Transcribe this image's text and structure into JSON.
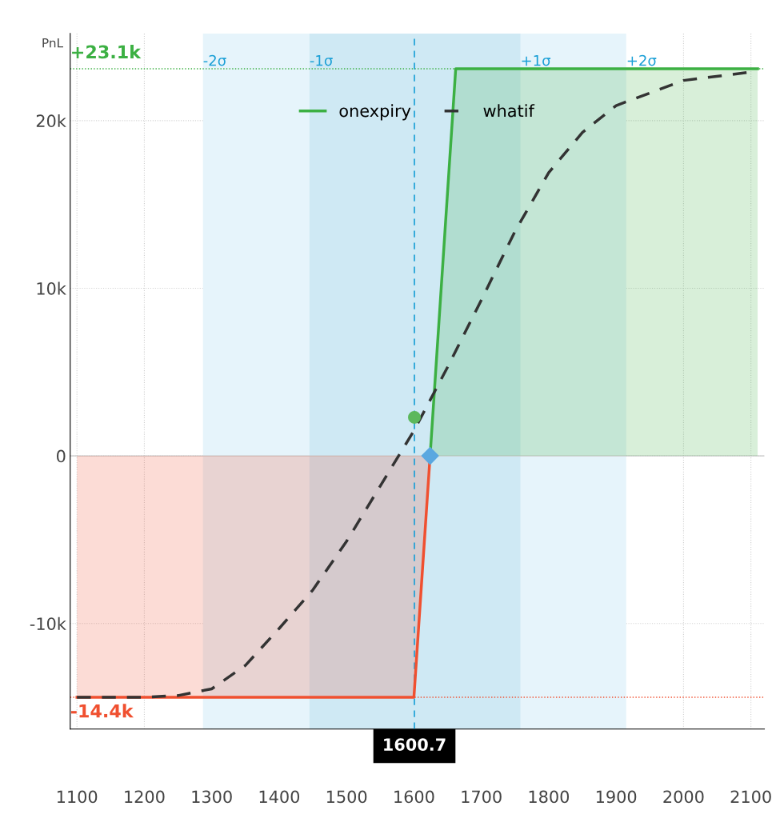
{
  "chart_data": {
    "type": "line",
    "ylabel": "PnL",
    "xlim": [
      1090,
      2120
    ],
    "ylim": [
      -16300,
      25200
    ],
    "xticks": [
      1100,
      1200,
      1300,
      1400,
      1500,
      1600,
      1700,
      1800,
      1900,
      2000,
      2100
    ],
    "yticks": [
      {
        "value": -10000,
        "label": "-10k"
      },
      0,
      {
        "value": 10000,
        "label": "10k"
      },
      {
        "value": 20000,
        "label": "20k"
      }
    ],
    "grid": true,
    "legend": "top",
    "bands": [
      {
        "axis": "x",
        "from": 1287,
        "to": 1915,
        "color": "#e6f4fb"
      },
      {
        "axis": "x",
        "from": 1445,
        "to": 1758,
        "color": "#cfe9f4"
      }
    ],
    "ref_lines": [
      {
        "axis": "y",
        "value": 23100,
        "label": "+23.1k",
        "color": "#3cb043",
        "line_style": "dotted"
      },
      {
        "axis": "y",
        "value": -14400,
        "label": "-14.4k",
        "color": "#f05030",
        "line_style": "dotted"
      },
      {
        "axis": "y",
        "value": 0,
        "color": "#c8c8c8",
        "line_style": "solid"
      },
      {
        "axis": "x",
        "value": 1600.7,
        "label": "1600.7",
        "color": "#1a9fd6",
        "line_style": "dashed"
      }
    ],
    "annotations": [
      {
        "text": "-2σ",
        "x": 1287,
        "y": 23100
      },
      {
        "text": "-1σ",
        "x": 1445,
        "y": 23100
      },
      {
        "text": "+1σ",
        "x": 1758,
        "y": 23100
      },
      {
        "text": "+2σ",
        "x": 1915,
        "y": 23100
      }
    ],
    "series": [
      {
        "type": "area",
        "color": "#f05030",
        "x": [
          1100,
          1600,
          1624
        ],
        "values": [
          -14400,
          -14400,
          0
        ]
      },
      {
        "type": "area",
        "name": "onexpiry",
        "color": "#3cb043",
        "x": [
          1624,
          1662,
          2110
        ],
        "values": [
          0,
          23100,
          23100
        ]
      },
      {
        "name": "whatif",
        "color": "#333333",
        "line_style": "dashed",
        "x": [
          1100,
          1200,
          1250,
          1300,
          1350,
          1400,
          1450,
          1500,
          1550,
          1600,
          1650,
          1700,
          1750,
          1800,
          1850,
          1900,
          2000,
          2100
        ],
        "values": [
          -14400,
          -14400,
          -14300,
          -13900,
          -12500,
          -10300,
          -8000,
          -5100,
          -1800,
          1500,
          5300,
          9300,
          13400,
          16900,
          19300,
          20900,
          22400,
          22900
        ]
      },
      {
        "type": "scatter",
        "color": "#5cb85c",
        "marker": "circle",
        "x": [
          1600.7
        ],
        "values": [
          2300
        ]
      },
      {
        "type": "scatter",
        "color": "#5aa8e0",
        "marker": "diamond",
        "x": [
          1624
        ],
        "values": [
          0
        ]
      }
    ]
  }
}
